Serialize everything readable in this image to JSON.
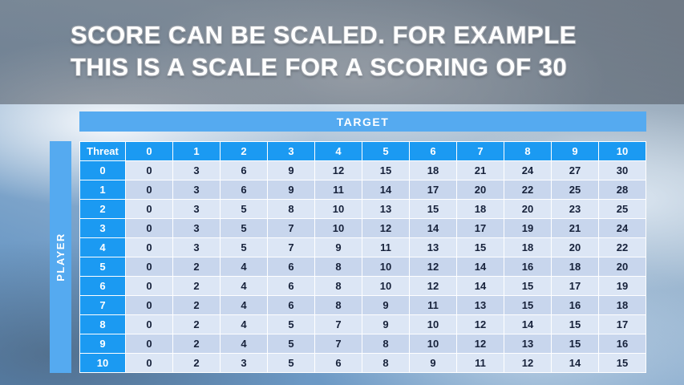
{
  "slide": {
    "title_line1": "SCORE CAN BE SCALED. FOR EXAMPLE",
    "title_line2": "THIS IS A SCALE FOR A SCORING OF 30"
  },
  "table": {
    "target_label": "TARGET",
    "player_label": "PLAYER",
    "corner_label": "Threat",
    "col_headers": [
      "0",
      "1",
      "2",
      "3",
      "4",
      "5",
      "6",
      "7",
      "8",
      "9",
      "10"
    ],
    "row_headers": [
      "0",
      "1",
      "2",
      "3",
      "4",
      "5",
      "6",
      "7",
      "8",
      "9",
      "10"
    ],
    "rows": [
      [
        0,
        3,
        6,
        9,
        12,
        15,
        18,
        21,
        24,
        27,
        30
      ],
      [
        0,
        3,
        6,
        9,
        11,
        14,
        17,
        20,
        22,
        25,
        28
      ],
      [
        0,
        3,
        5,
        8,
        10,
        13,
        15,
        18,
        20,
        23,
        25
      ],
      [
        0,
        3,
        5,
        7,
        10,
        12,
        14,
        17,
        19,
        21,
        24
      ],
      [
        0,
        3,
        5,
        7,
        9,
        11,
        13,
        15,
        18,
        20,
        22
      ],
      [
        0,
        2,
        4,
        6,
        8,
        10,
        12,
        14,
        16,
        18,
        20
      ],
      [
        0,
        2,
        4,
        6,
        8,
        10,
        12,
        14,
        15,
        17,
        19
      ],
      [
        0,
        2,
        4,
        6,
        8,
        9,
        11,
        13,
        15,
        16,
        18
      ],
      [
        0,
        2,
        4,
        5,
        7,
        9,
        10,
        12,
        14,
        15,
        17
      ],
      [
        0,
        2,
        4,
        5,
        7,
        8,
        10,
        12,
        13,
        15,
        16
      ],
      [
        0,
        2,
        3,
        5,
        6,
        8,
        9,
        11,
        12,
        14,
        15
      ]
    ]
  },
  "colors": {
    "header_blue": "#1b9af2",
    "bar_blue": "#55aaf0",
    "band_light": "#dce6f5",
    "band_dark": "#c8d6ed"
  }
}
